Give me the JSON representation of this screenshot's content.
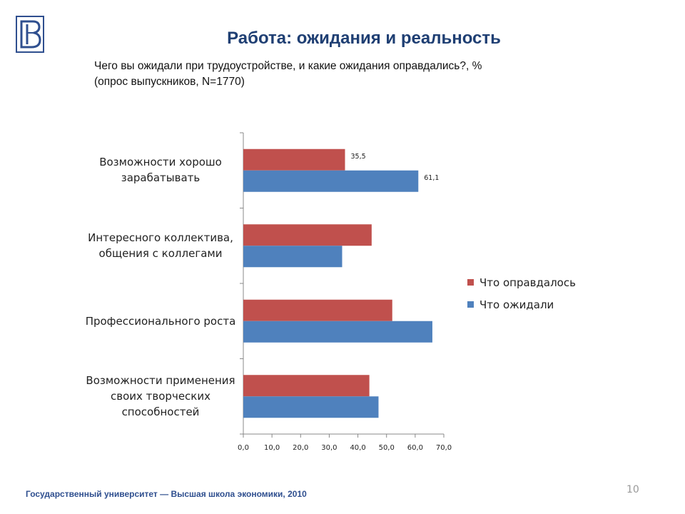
{
  "page": {
    "title": "Работа: ожидания и реальность",
    "subtitle_line1": "Чего вы ожидали при  трудоустройстве, и какие ожидания оправдались?, %",
    "subtitle_line2": "(опрос выпускников, N=1770)",
    "footer": "Государственный университет — Высшая школа экономики, 2010",
    "page_number": "10"
  },
  "colors": {
    "title": "#1f3f73",
    "justified": "#c0504d",
    "expected": "#4f81bd"
  },
  "chart_data": {
    "type": "bar",
    "orientation": "horizontal",
    "categories": [
      "Возможности хорошо\nзарабатывать",
      "Интересного коллектива,\nобщения с коллегами",
      "Профессионального роста",
      "Возможности применения\nсвоих творческих\nспособностей"
    ],
    "series": [
      {
        "name": "Что оправдалось",
        "values": [
          35.5,
          44.8,
          52.0,
          44.0
        ],
        "data_labels": [
          "35,5",
          null,
          null,
          null
        ]
      },
      {
        "name": "Что ожидали",
        "values": [
          61.1,
          34.5,
          66.0,
          47.2
        ],
        "data_labels": [
          "61,1",
          null,
          null,
          null
        ]
      }
    ],
    "xlim": [
      0,
      70
    ],
    "xticks": [
      0,
      10,
      20,
      30,
      40,
      50,
      60,
      70
    ],
    "xtick_labels": [
      "0,0",
      "10,0",
      "20,0",
      "30,0",
      "40,0",
      "50,0",
      "60,0",
      "70,0"
    ],
    "legend": "right"
  }
}
